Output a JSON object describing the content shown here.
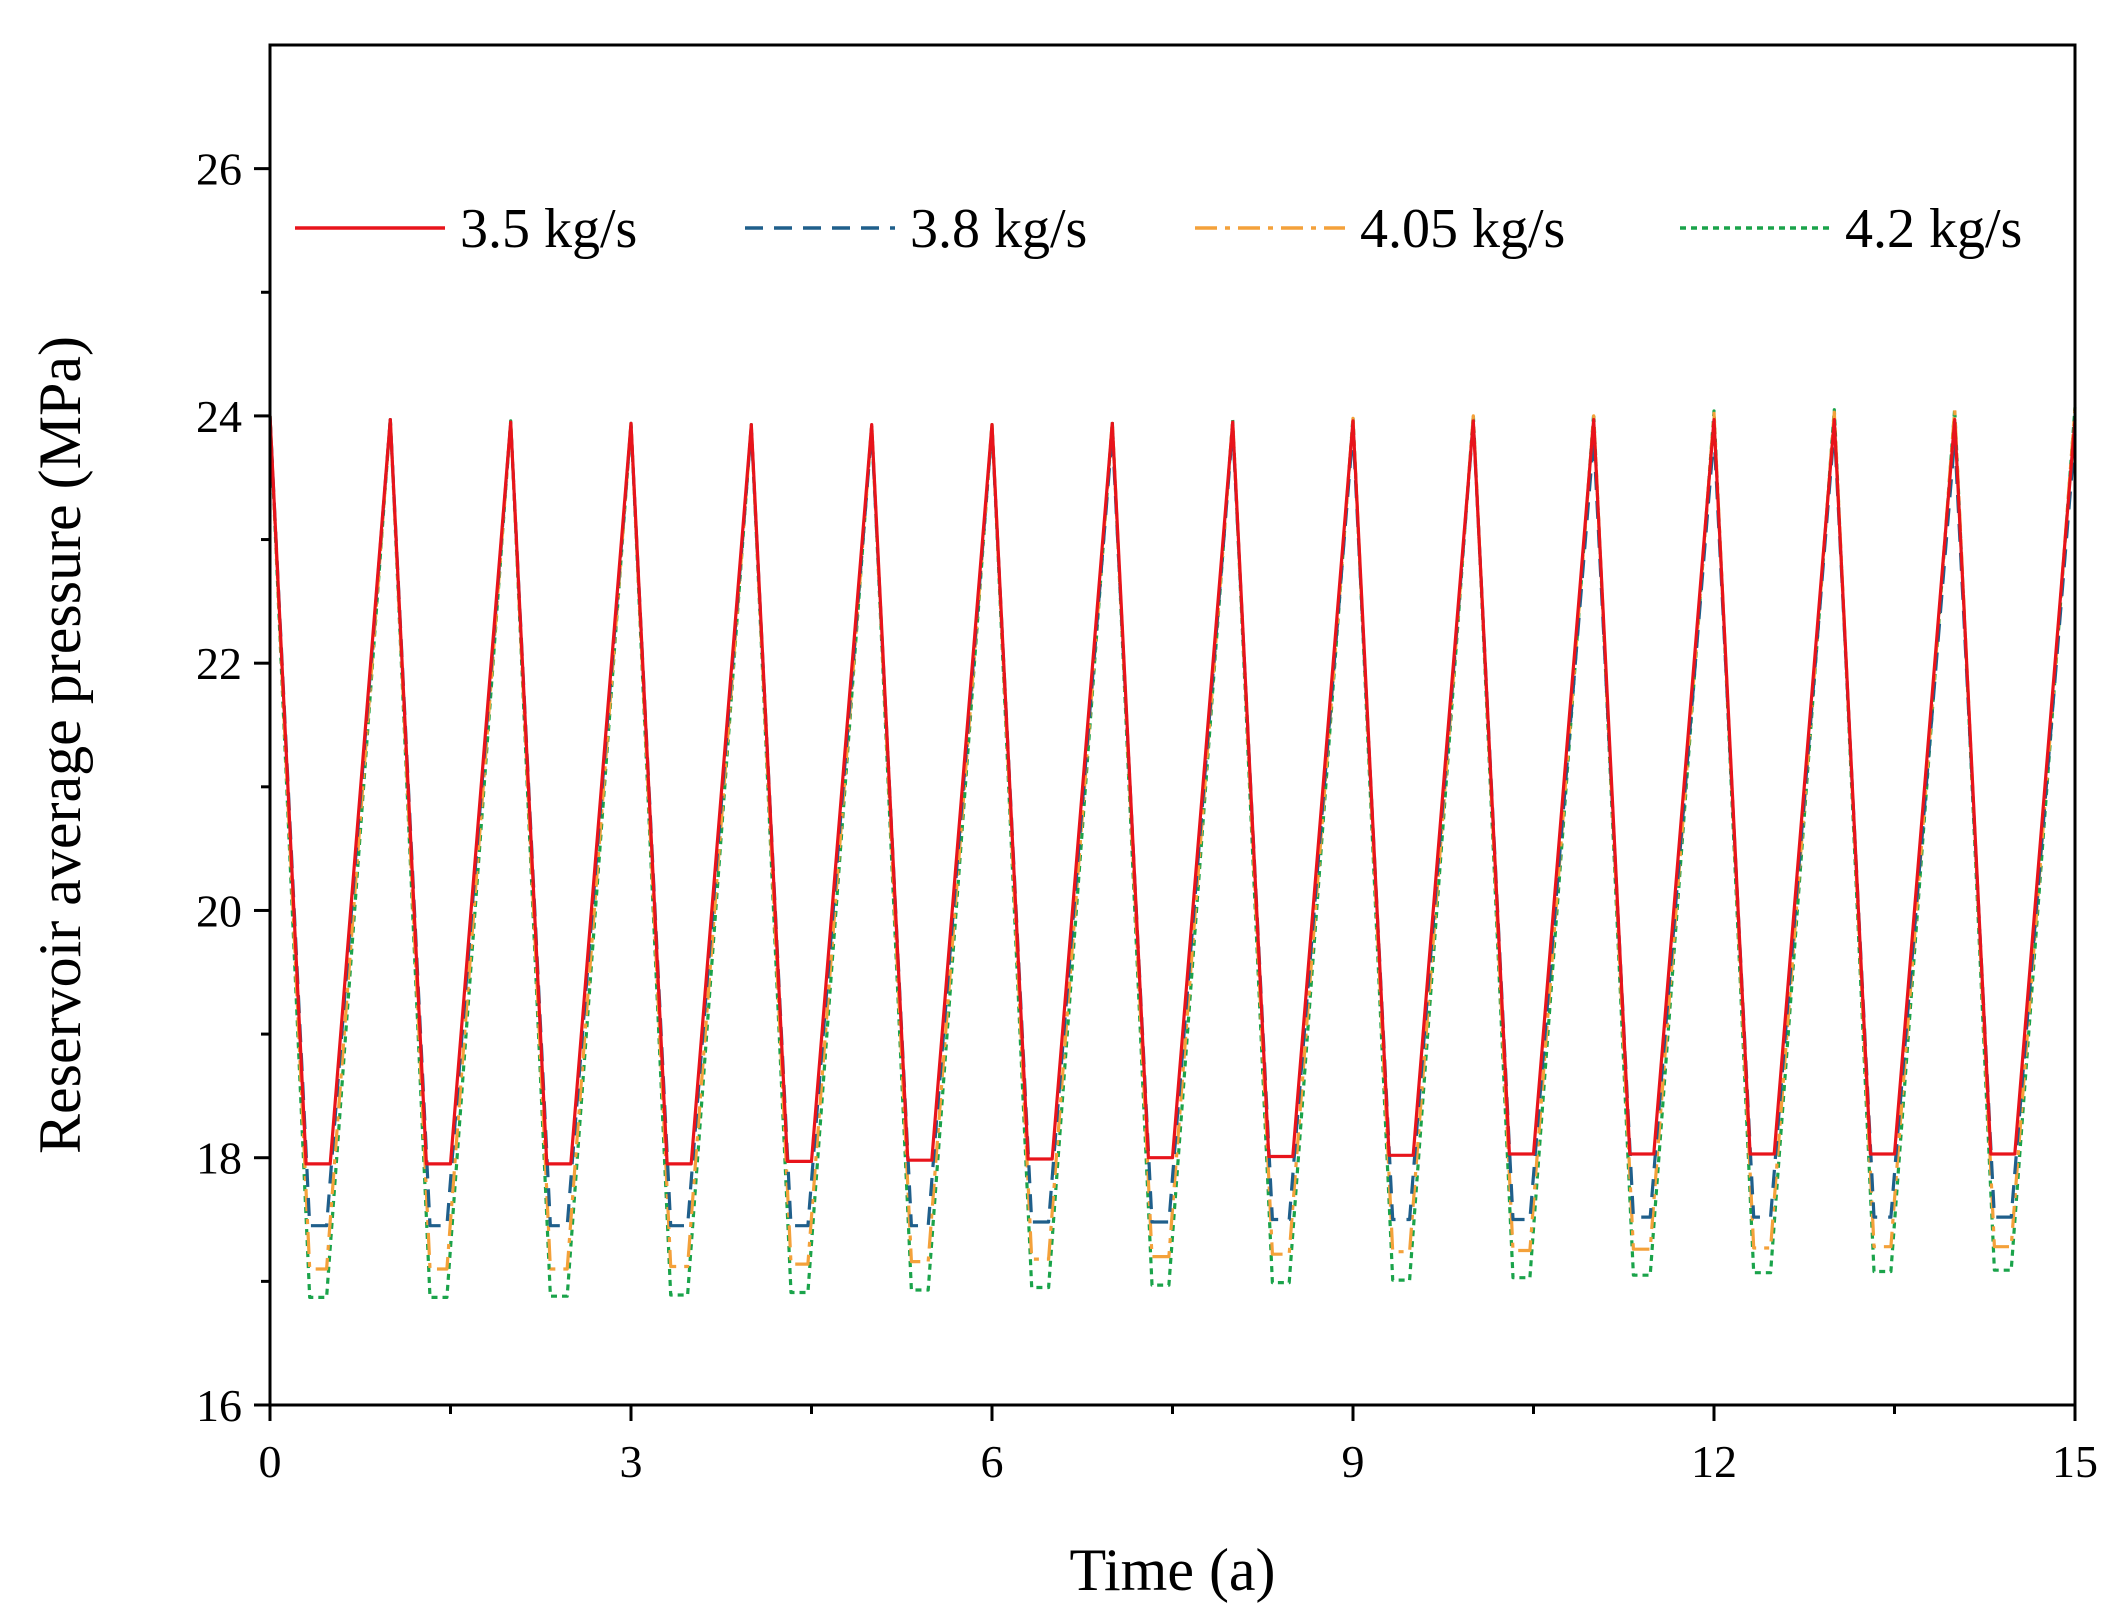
{
  "chart_data": {
    "type": "line",
    "title": "",
    "xlabel": "Time (a)",
    "ylabel": "Reservoir average pressure (MPa)",
    "xlim": [
      0,
      15
    ],
    "ylim": [
      16,
      27
    ],
    "xticks": [
      0,
      3,
      6,
      9,
      12,
      15
    ],
    "xtick_labels": [
      "0",
      "3",
      "6",
      "9",
      "12",
      "15"
    ],
    "xminor": [
      1.5,
      4.5,
      7.5,
      10.5,
      13.5
    ],
    "yticks": [
      16,
      18,
      20,
      22,
      24,
      26
    ],
    "ytick_labels": [
      "16",
      "18",
      "20",
      "22",
      "24",
      "26"
    ],
    "yminor": [
      17,
      19,
      21,
      23,
      25
    ],
    "grid": false,
    "legend_position": "top",
    "cycle_period_years": 1,
    "series": [
      {
        "name": "3.5 kg/s",
        "color": "#e8141b",
        "style": "solid",
        "start": 24.0,
        "peaks": [
          23.97,
          23.95,
          23.94,
          23.93,
          23.93,
          23.93,
          23.94,
          23.95,
          23.96,
          23.96,
          23.97,
          23.97,
          23.97,
          23.97,
          23.97
        ],
        "troughs": [
          17.95,
          17.95,
          17.95,
          17.95,
          17.97,
          17.98,
          17.99,
          18.0,
          18.01,
          18.02,
          18.03,
          18.03,
          18.03,
          18.03,
          18.03
        ]
      },
      {
        "name": "3.8 kg/s",
        "color": "#1f5f8b",
        "style": "dashed",
        "start": 24.0,
        "peaks": [
          23.97,
          23.94,
          23.92,
          23.9,
          23.88,
          23.9,
          23.86,
          23.9,
          23.88,
          23.95,
          23.82,
          23.85,
          23.9,
          23.82,
          23.85
        ],
        "troughs": [
          17.45,
          17.45,
          17.45,
          17.45,
          17.45,
          17.45,
          17.48,
          17.48,
          17.5,
          17.5,
          17.5,
          17.52,
          17.52,
          17.52,
          17.52
        ]
      },
      {
        "name": "4.05 kg/s",
        "color": "#f4a13a",
        "style": "dashdot",
        "start": 24.0,
        "peaks": [
          23.97,
          23.95,
          23.93,
          23.92,
          23.92,
          23.93,
          23.95,
          23.96,
          23.98,
          24.0,
          24.0,
          24.02,
          24.03,
          24.05,
          24.06
        ],
        "troughs": [
          17.1,
          17.1,
          17.1,
          17.12,
          17.14,
          17.16,
          17.18,
          17.2,
          17.22,
          17.24,
          17.25,
          17.26,
          17.27,
          17.28,
          17.28
        ]
      },
      {
        "name": "4.2 kg/s",
        "color": "#1aa34a",
        "style": "dotted",
        "start": 24.0,
        "peaks": [
          23.98,
          23.96,
          23.94,
          23.93,
          23.93,
          23.93,
          23.95,
          23.97,
          23.99,
          24.01,
          24.02,
          24.04,
          24.05,
          24.06,
          24.07
        ],
        "troughs": [
          16.87,
          16.87,
          16.88,
          16.89,
          16.91,
          16.93,
          16.95,
          16.97,
          16.99,
          17.01,
          17.03,
          17.05,
          17.07,
          17.08,
          17.09
        ]
      }
    ]
  }
}
